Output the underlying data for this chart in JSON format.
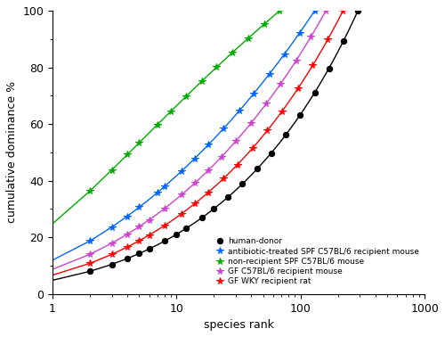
{
  "title": "",
  "xlabel": "species rank",
  "ylabel": "cumulative dominance %",
  "xlim": [
    1,
    1000
  ],
  "ylim": [
    0,
    100
  ],
  "figsize": [
    5.0,
    3.78
  ],
  "dpi": 100,
  "series": [
    {
      "label": "human-donor",
      "color": "#000000",
      "marker": "o",
      "markersize": 4.5,
      "linewidth": 1.0,
      "n_species": 290,
      "alpha_zip": 0.62,
      "n_markers": 22
    },
    {
      "label": "antibiotic-treated SPF C57BL/6 recipient mouse",
      "color": "#0066ff",
      "marker": "*",
      "markersize": 5.5,
      "linewidth": 1.0,
      "n_species": 130,
      "alpha_zip": 0.82,
      "n_markers": 18
    },
    {
      "label": "non-recipient SPF C57BL/6 mouse",
      "color": "#00aa00",
      "marker": "*",
      "markersize": 5.5,
      "linewidth": 1.0,
      "n_species": 68,
      "alpha_zip": 1.1,
      "n_markers": 15
    },
    {
      "label": "GF C57BL/6 recipient mouse",
      "color": "#cc44cc",
      "marker": "*",
      "markersize": 5.5,
      "linewidth": 1.0,
      "n_species": 160,
      "alpha_zip": 0.73,
      "n_markers": 19
    },
    {
      "label": "GF WKY recipient rat",
      "color": "#ff0000",
      "marker": "*",
      "markersize": 5.5,
      "linewidth": 1.0,
      "n_species": 220,
      "alpha_zip": 0.68,
      "n_markers": 20
    }
  ]
}
